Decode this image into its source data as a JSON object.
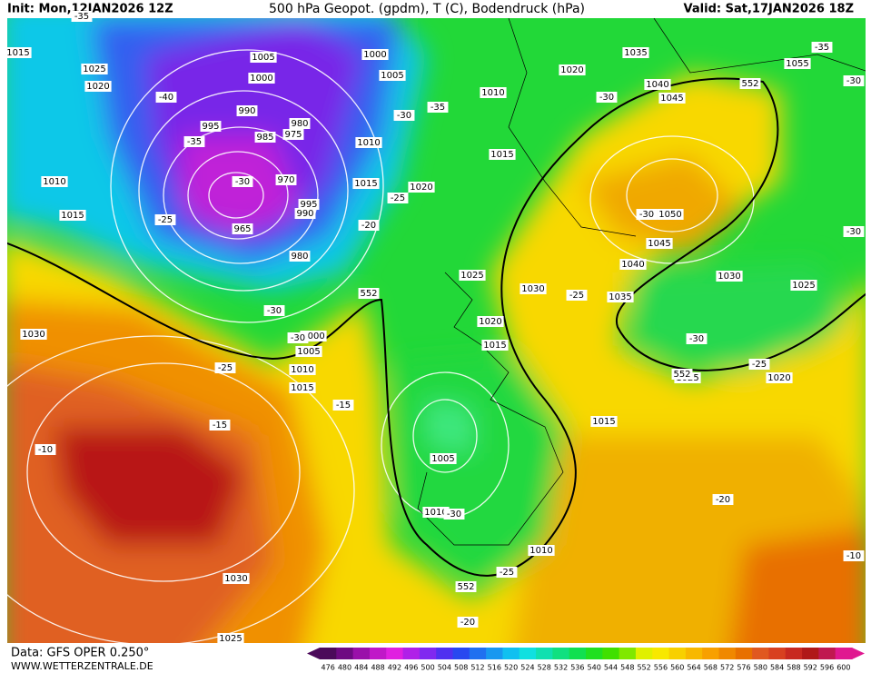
{
  "header": {
    "init": "Init: Mon,12JAN2026 12Z",
    "title": "500 hPa Geopot. (gpdm), T (C), Bodendruck (hPa)",
    "valid": "Valid: Sat,17JAN2026 18Z"
  },
  "footer": {
    "data": "Data: GFS OPER 0.250°",
    "site": "WWW.WETTERZENTRALE.DE"
  },
  "pressure_labels": [
    "1015",
    "1025",
    "1020",
    "1005",
    "1000",
    "1000",
    "1005",
    "1010",
    "1020",
    "1035",
    "1055",
    "1040",
    "1045",
    "990",
    "995",
    "985",
    "980",
    "975",
    "1010",
    "1015",
    "970",
    "1015",
    "1020",
    "995",
    "990",
    "965",
    "980",
    "1010",
    "1015",
    "1050",
    "1045",
    "1040",
    "1025",
    "1030",
    "1035",
    "1030",
    "1025",
    "1020",
    "1015",
    "1030",
    "1000",
    "1005",
    "1010",
    "1015",
    "1025",
    "1020",
    "1015",
    "1005",
    "1010",
    "1010",
    "1030",
    "1025"
  ],
  "temperature_labels": [
    "-35",
    "-40",
    "-35",
    "-30",
    "-25",
    "-30",
    "-35",
    "-30",
    "-25",
    "-20",
    "-30",
    "-30",
    "-35",
    "-30",
    "-25",
    "-30",
    "-30",
    "-25",
    "-15",
    "-15",
    "-10",
    "-30",
    "-25",
    "-20",
    "-10",
    "-30",
    "-25",
    "-20"
  ],
  "geopotential_labels": [
    "552",
    "552",
    "552",
    "552"
  ],
  "legend": {
    "values": [
      476,
      480,
      484,
      488,
      492,
      496,
      500,
      504,
      508,
      512,
      516,
      520,
      524,
      528,
      532,
      536,
      540,
      544,
      548,
      552,
      556,
      560,
      564,
      568,
      572,
      576,
      580,
      584,
      588,
      592,
      596,
      600
    ],
    "colors": [
      "#4b0a5a",
      "#6e0a82",
      "#9a10aa",
      "#c018c8",
      "#e020e0",
      "#b020e8",
      "#8028f0",
      "#5030f0",
      "#2848f0",
      "#2070f0",
      "#1898f0",
      "#10c0f0",
      "#10e0e0",
      "#10e0b0",
      "#10e080",
      "#10e050",
      "#20e020",
      "#40e000",
      "#80e800",
      "#e0f000",
      "#f8e800",
      "#f8d000",
      "#f8b800",
      "#f8a000",
      "#f08800",
      "#e87000",
      "#e05820",
      "#d84020",
      "#c82820",
      "#b01818",
      "#c01850",
      "#e01890"
    ]
  }
}
